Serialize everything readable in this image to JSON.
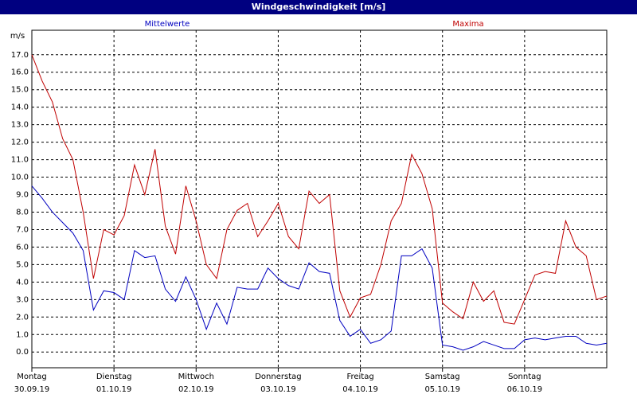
{
  "chart_data": {
    "type": "line",
    "title": "Windgeschwindigkeit [m/s]",
    "y_unit": "m/s",
    "grid": true,
    "xlim": [
      0,
      168
    ],
    "xticks": [
      {
        "value": 0,
        "label": "Montag",
        "date": "30.09.19"
      },
      {
        "value": 24,
        "label": "Dienstag",
        "date": "01.10.19"
      },
      {
        "value": 48,
        "label": "Mittwoch",
        "date": "02.10.19"
      },
      {
        "value": 72,
        "label": "Donnerstag",
        "date": "03.10.19"
      },
      {
        "value": 96,
        "label": "Freitag",
        "date": "04.10.19"
      },
      {
        "value": 120,
        "label": "Samstag",
        "date": "05.10.19"
      },
      {
        "value": 144,
        "label": "Sonntag",
        "date": "06.10.19"
      }
    ],
    "ylim": [
      -0.9,
      18.4
    ],
    "yticks": [
      {
        "value": 0,
        "label": "0.0"
      },
      {
        "value": 1,
        "label": "1.0"
      },
      {
        "value": 2,
        "label": "2.0"
      },
      {
        "value": 3,
        "label": "3.0"
      },
      {
        "value": 4,
        "label": "4.0"
      },
      {
        "value": 5,
        "label": "5.0"
      },
      {
        "value": 6,
        "label": "6.0"
      },
      {
        "value": 7,
        "label": "7.0"
      },
      {
        "value": 8,
        "label": "8.0"
      },
      {
        "value": 9,
        "label": "9.0"
      },
      {
        "value": 10,
        "label": "10.0"
      },
      {
        "value": 11,
        "label": "11.0"
      },
      {
        "value": 12,
        "label": "12.0"
      },
      {
        "value": 13,
        "label": "13.0"
      },
      {
        "value": 14,
        "label": "14.0"
      },
      {
        "value": 15,
        "label": "15.0"
      },
      {
        "value": 16,
        "label": "16.0"
      },
      {
        "value": 17,
        "label": "17.0"
      }
    ],
    "x": [
      0,
      3,
      6,
      9,
      12,
      15,
      18,
      21,
      24,
      27,
      30,
      33,
      36,
      39,
      42,
      45,
      48,
      51,
      54,
      57,
      60,
      63,
      66,
      69,
      72,
      75,
      78,
      81,
      84,
      87,
      90,
      93,
      96,
      99,
      102,
      105,
      108,
      111,
      114,
      117,
      120,
      123,
      126,
      129,
      132,
      135,
      138,
      141,
      144,
      147,
      150,
      153,
      156,
      159,
      162,
      165,
      168
    ],
    "series": [
      {
        "name": "Mittelwerte",
        "color": "#0000c0",
        "values": [
          9.5,
          8.8,
          8.0,
          7.4,
          6.8,
          5.8,
          2.4,
          3.5,
          3.4,
          3.0,
          5.8,
          5.4,
          5.5,
          3.6,
          2.9,
          4.3,
          3.0,
          1.3,
          2.8,
          1.6,
          3.7,
          3.6,
          3.6,
          4.8,
          4.2,
          3.8,
          3.6,
          5.1,
          4.6,
          4.5,
          1.8,
          0.9,
          1.3,
          0.5,
          0.7,
          1.2,
          5.5,
          5.5,
          5.9,
          4.8,
          0.4,
          0.3,
          0.1,
          0.3,
          0.6,
          0.4,
          0.2,
          0.2,
          0.7,
          0.8,
          0.7,
          0.8,
          0.9,
          0.9,
          0.5,
          0.4,
          0.5
        ]
      },
      {
        "name": "Maxima",
        "color": "#c00000",
        "values": [
          17.0,
          15.5,
          14.3,
          12.2,
          11.0,
          8.0,
          4.2,
          7.0,
          6.7,
          7.8,
          10.7,
          9.0,
          11.6,
          7.2,
          5.6,
          9.5,
          7.5,
          5.0,
          4.2,
          7.0,
          8.1,
          8.5,
          6.6,
          7.5,
          8.5,
          6.6,
          5.9,
          9.2,
          8.5,
          9.0,
          3.5,
          2.0,
          3.1,
          3.3,
          5.0,
          7.5,
          8.5,
          11.3,
          10.2,
          8.2,
          2.8,
          2.3,
          1.9,
          4.0,
          2.9,
          3.5,
          1.7,
          1.6,
          3.0,
          4.4,
          4.6,
          4.5,
          7.5,
          6.0,
          5.5,
          3.0,
          3.2
        ]
      }
    ]
  }
}
